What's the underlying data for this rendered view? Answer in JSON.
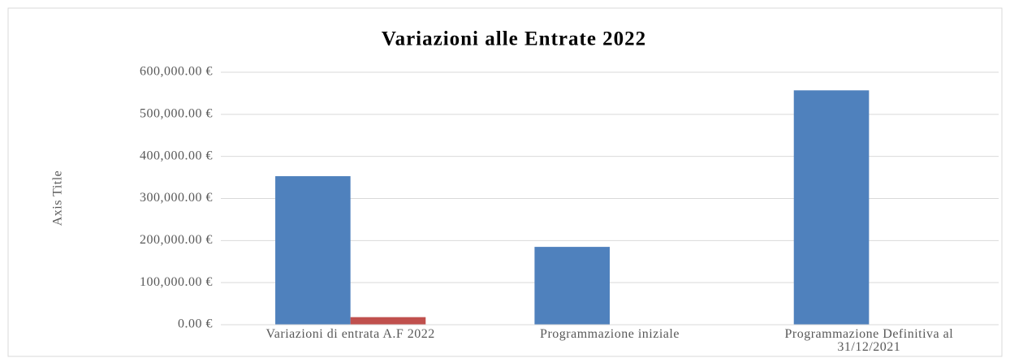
{
  "chart_data": {
    "type": "bar",
    "title": "Variazioni alle Entrate 2022",
    "y_label": "Axis Title",
    "categories": [
      "Variazioni di entrata A.F 2022",
      "Programmazione iniziale",
      "Programmazione Definitiva al 31/12/2021"
    ],
    "series": [
      {
        "color": "#4f81bd",
        "values": [
          353000,
          185000,
          557000
        ]
      },
      {
        "color": "#c0504d",
        "values": [
          18000,
          null,
          null
        ]
      }
    ],
    "ylim": [
      0,
      600000
    ],
    "yticks": [
      {
        "value": 0,
        "label": "0.00 €"
      },
      {
        "value": 100000,
        "label": "100,000.00 €"
      },
      {
        "value": 200000,
        "label": "200,000.00 €"
      },
      {
        "value": 300000,
        "label": "300,000.00 €"
      },
      {
        "value": 400000,
        "label": "400,000.00 €"
      },
      {
        "value": 500000,
        "label": "500,000.00 €"
      },
      {
        "value": 600000,
        "label": "600,000.00 €"
      }
    ],
    "grid": true
  }
}
